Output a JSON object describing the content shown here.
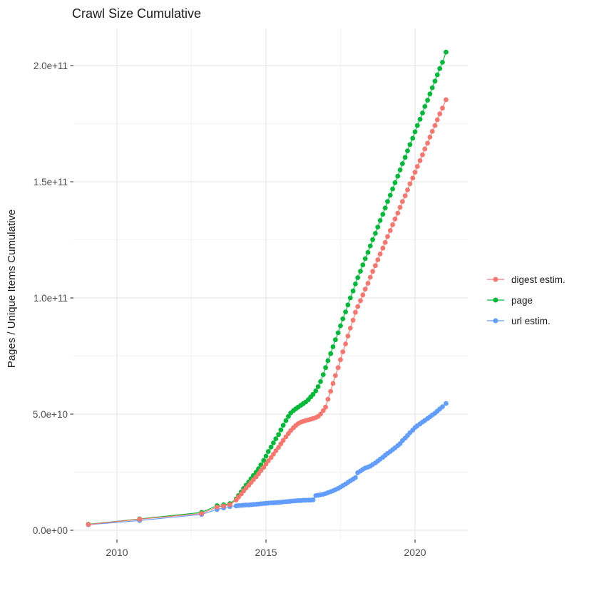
{
  "title": "Crawl Size Cumulative",
  "axes": {
    "y_label": "Pages / Unique Items Cumulative",
    "x_tick_labels": [
      "2010",
      "2015",
      "2020"
    ],
    "y_tick_labels": [
      "0.0e+00",
      "5.0e+10",
      "1.0e+11",
      "1.5e+11",
      "2.0e+11"
    ]
  },
  "legend": {
    "items": [
      {
        "label": "digest estim.",
        "color": "#F8766D"
      },
      {
        "label": "page",
        "color": "#00BA38"
      },
      {
        "label": "url estim.",
        "color": "#619CFF"
      }
    ]
  },
  "colors": {
    "digest": "#F8766D",
    "page": "#00BA38",
    "url": "#619CFF",
    "grid_major": "#E3E3E3",
    "grid_minor": "#F1F1F1",
    "tick": "#333333",
    "axis_text": "#4D4D4D",
    "text": "#1A1A1A",
    "background": "#FFFFFF"
  },
  "chart_data": {
    "type": "line",
    "title": "Crawl Size Cumulative",
    "xlabel": "",
    "ylabel": "Pages / Unique Items Cumulative",
    "value_unit": "items, values in billions (1e9)",
    "x_range": [
      2008.5,
      2021.8
    ],
    "y_range_e9": [
      -4,
      216
    ],
    "x_major_ticks": [
      2010,
      2015,
      2020
    ],
    "x_minor_gridlines": [
      2012.5,
      2017.5
    ],
    "y_major_ticks_e9": [
      0,
      50,
      100,
      150,
      200
    ],
    "y_minor_gridlines_e9": [
      25,
      75,
      125,
      175
    ],
    "x_tick_labels": [
      "2010",
      "2015",
      "2020"
    ],
    "y_tick_labels": [
      "0.0e+00",
      "5.0e+10",
      "1.0e+11",
      "1.5e+11",
      "2.0e+11"
    ],
    "grid": true,
    "legend_position": "right",
    "series": [
      {
        "name": "digest estim.",
        "color": "#F8766D",
        "points": [
          [
            2009.04,
            2.5
          ],
          [
            2010.76,
            4.8
          ],
          [
            2012.84,
            7.2
          ],
          [
            2013.36,
            10.0
          ],
          [
            2013.58,
            10.5
          ],
          [
            2013.79,
            11.0
          ],
          [
            2014.0,
            13.0
          ],
          [
            2014.08,
            14.3
          ],
          [
            2014.17,
            15.6
          ],
          [
            2014.25,
            16.9
          ],
          [
            2014.33,
            18.2
          ],
          [
            2014.42,
            19.4
          ],
          [
            2014.5,
            20.6
          ],
          [
            2014.58,
            21.8
          ],
          [
            2014.67,
            23.0
          ],
          [
            2014.75,
            24.3
          ],
          [
            2014.83,
            25.7
          ],
          [
            2014.92,
            27.1
          ],
          [
            2015.0,
            28.5
          ],
          [
            2015.08,
            29.9
          ],
          [
            2015.17,
            31.3
          ],
          [
            2015.25,
            32.7
          ],
          [
            2015.33,
            34.2
          ],
          [
            2015.42,
            35.7
          ],
          [
            2015.5,
            37.2
          ],
          [
            2015.58,
            38.7
          ],
          [
            2015.67,
            40.2
          ],
          [
            2015.75,
            41.6
          ],
          [
            2015.83,
            42.9
          ],
          [
            2015.92,
            44.1
          ],
          [
            2016.0,
            45.1
          ],
          [
            2016.08,
            45.9
          ],
          [
            2016.17,
            46.5
          ],
          [
            2016.25,
            46.9
          ],
          [
            2016.33,
            47.2
          ],
          [
            2016.42,
            47.5
          ],
          [
            2016.5,
            47.8
          ],
          [
            2016.58,
            48.1
          ],
          [
            2016.67,
            48.5
          ],
          [
            2016.75,
            49.0
          ],
          [
            2016.83,
            50.0
          ],
          [
            2016.92,
            51.5
          ],
          [
            2017.0,
            53.0
          ],
          [
            2017.08,
            56.4
          ],
          [
            2017.17,
            59.8
          ],
          [
            2017.25,
            63.2
          ],
          [
            2017.33,
            66.6
          ],
          [
            2017.42,
            70.0
          ],
          [
            2017.5,
            73.4
          ],
          [
            2017.58,
            76.8
          ],
          [
            2017.67,
            80.2
          ],
          [
            2017.75,
            83.6
          ],
          [
            2017.83,
            87.0
          ],
          [
            2017.92,
            90.4
          ],
          [
            2018.0,
            93.8
          ],
          [
            2018.08,
            96.3
          ],
          [
            2018.17,
            98.8
          ],
          [
            2018.25,
            101.3
          ],
          [
            2018.33,
            103.8
          ],
          [
            2018.42,
            106.3
          ],
          [
            2018.5,
            108.9
          ],
          [
            2018.58,
            111.4
          ],
          [
            2018.67,
            113.9
          ],
          [
            2018.75,
            116.4
          ],
          [
            2018.83,
            118.9
          ],
          [
            2018.92,
            121.4
          ],
          [
            2019.0,
            123.9
          ],
          [
            2019.08,
            126.4
          ],
          [
            2019.17,
            129.0
          ],
          [
            2019.25,
            131.5
          ],
          [
            2019.33,
            134.0
          ],
          [
            2019.42,
            136.5
          ],
          [
            2019.5,
            139.0
          ],
          [
            2019.58,
            141.5
          ],
          [
            2019.67,
            144.0
          ],
          [
            2019.75,
            146.5
          ],
          [
            2019.83,
            149.1
          ],
          [
            2019.92,
            151.6
          ],
          [
            2020.0,
            154.1
          ],
          [
            2020.08,
            156.6
          ],
          [
            2020.17,
            159.1
          ],
          [
            2020.25,
            161.6
          ],
          [
            2020.33,
            164.1
          ],
          [
            2020.42,
            166.6
          ],
          [
            2020.5,
            169.2
          ],
          [
            2020.58,
            171.7
          ],
          [
            2020.67,
            174.2
          ],
          [
            2020.75,
            176.7
          ],
          [
            2020.83,
            179.2
          ],
          [
            2020.92,
            181.7
          ],
          [
            2021.04,
            185.3
          ]
        ]
      },
      {
        "name": "page",
        "color": "#00BA38",
        "points": [
          [
            2009.04,
            2.6
          ],
          [
            2010.76,
            4.9
          ],
          [
            2012.84,
            7.7
          ],
          [
            2013.36,
            10.6
          ],
          [
            2013.58,
            11.0
          ],
          [
            2013.79,
            11.5
          ],
          [
            2014.0,
            13.5
          ],
          [
            2014.08,
            15.0
          ],
          [
            2014.17,
            16.5
          ],
          [
            2014.25,
            18.0
          ],
          [
            2014.33,
            19.4
          ],
          [
            2014.42,
            20.8
          ],
          [
            2014.5,
            22.2
          ],
          [
            2014.58,
            23.6
          ],
          [
            2014.67,
            25.0
          ],
          [
            2014.75,
            26.5
          ],
          [
            2014.83,
            28.2
          ],
          [
            2014.92,
            30.0
          ],
          [
            2015.0,
            31.9
          ],
          [
            2015.08,
            33.9
          ],
          [
            2015.17,
            35.8
          ],
          [
            2015.25,
            37.6
          ],
          [
            2015.33,
            39.4
          ],
          [
            2015.42,
            41.2
          ],
          [
            2015.5,
            43.2
          ],
          [
            2015.58,
            45.2
          ],
          [
            2015.67,
            47.2
          ],
          [
            2015.75,
            49.0
          ],
          [
            2015.83,
            50.5
          ],
          [
            2015.92,
            51.5
          ],
          [
            2016.0,
            52.3
          ],
          [
            2016.08,
            53.0
          ],
          [
            2016.17,
            53.8
          ],
          [
            2016.25,
            54.5
          ],
          [
            2016.33,
            55.2
          ],
          [
            2016.42,
            56.2
          ],
          [
            2016.5,
            57.4
          ],
          [
            2016.58,
            58.5
          ],
          [
            2016.67,
            60.0
          ],
          [
            2016.75,
            61.8
          ],
          [
            2016.83,
            64.0
          ],
          [
            2016.92,
            67.0
          ],
          [
            2017.0,
            70.0
          ],
          [
            2017.08,
            73.0
          ],
          [
            2017.17,
            76.0
          ],
          [
            2017.25,
            79.0
          ],
          [
            2017.33,
            82.0
          ],
          [
            2017.42,
            85.0
          ],
          [
            2017.5,
            88.0
          ],
          [
            2017.58,
            91.0
          ],
          [
            2017.67,
            94.0
          ],
          [
            2017.75,
            97.0
          ],
          [
            2017.83,
            100.0
          ],
          [
            2017.92,
            103.0
          ],
          [
            2018.0,
            106.0
          ],
          [
            2018.08,
            108.7
          ],
          [
            2018.17,
            111.5
          ],
          [
            2018.25,
            114.2
          ],
          [
            2018.33,
            116.9
          ],
          [
            2018.42,
            119.6
          ],
          [
            2018.5,
            122.4
          ],
          [
            2018.58,
            125.1
          ],
          [
            2018.67,
            127.8
          ],
          [
            2018.75,
            130.5
          ],
          [
            2018.83,
            133.3
          ],
          [
            2018.92,
            136.0
          ],
          [
            2019.0,
            138.7
          ],
          [
            2019.08,
            141.5
          ],
          [
            2019.17,
            144.2
          ],
          [
            2019.25,
            146.9
          ],
          [
            2019.33,
            149.6
          ],
          [
            2019.42,
            152.4
          ],
          [
            2019.5,
            155.1
          ],
          [
            2019.58,
            157.8
          ],
          [
            2019.67,
            160.5
          ],
          [
            2019.75,
            163.3
          ],
          [
            2019.83,
            166.0
          ],
          [
            2019.92,
            168.7
          ],
          [
            2020.0,
            171.5
          ],
          [
            2020.08,
            174.2
          ],
          [
            2020.17,
            176.9
          ],
          [
            2020.25,
            179.6
          ],
          [
            2020.33,
            182.4
          ],
          [
            2020.42,
            185.1
          ],
          [
            2020.5,
            187.8
          ],
          [
            2020.58,
            190.5
          ],
          [
            2020.67,
            193.3
          ],
          [
            2020.75,
            196.0
          ],
          [
            2020.83,
            198.7
          ],
          [
            2020.92,
            201.4
          ],
          [
            2021.04,
            205.8
          ]
        ]
      },
      {
        "name": "url estim.",
        "color": "#619CFF",
        "points": [
          [
            2009.04,
            2.4
          ],
          [
            2010.76,
            4.2
          ],
          [
            2012.84,
            6.8
          ],
          [
            2013.36,
            9.0
          ],
          [
            2013.58,
            9.6
          ],
          [
            2013.79,
            10.2
          ],
          [
            2014.0,
            10.5
          ],
          [
            2014.08,
            10.6
          ],
          [
            2014.17,
            10.7
          ],
          [
            2014.25,
            10.8
          ],
          [
            2014.33,
            10.9
          ],
          [
            2014.42,
            10.9
          ],
          [
            2014.5,
            11.0
          ],
          [
            2014.58,
            11.1
          ],
          [
            2014.67,
            11.2
          ],
          [
            2014.75,
            11.3
          ],
          [
            2014.83,
            11.4
          ],
          [
            2014.92,
            11.5
          ],
          [
            2015.0,
            11.6
          ],
          [
            2015.08,
            11.7
          ],
          [
            2015.17,
            11.8
          ],
          [
            2015.25,
            11.8
          ],
          [
            2015.33,
            11.9
          ],
          [
            2015.42,
            12.0
          ],
          [
            2015.5,
            12.1
          ],
          [
            2015.58,
            12.2
          ],
          [
            2015.67,
            12.3
          ],
          [
            2015.75,
            12.4
          ],
          [
            2015.83,
            12.5
          ],
          [
            2015.92,
            12.6
          ],
          [
            2016.0,
            12.7
          ],
          [
            2016.08,
            12.8
          ],
          [
            2016.17,
            12.8
          ],
          [
            2016.25,
            12.9
          ],
          [
            2016.33,
            12.9
          ],
          [
            2016.42,
            13.0
          ],
          [
            2016.5,
            13.0
          ],
          [
            2016.58,
            13.1
          ],
          [
            2016.67,
            14.9
          ],
          [
            2016.75,
            15.1
          ],
          [
            2016.83,
            15.3
          ],
          [
            2016.92,
            15.5
          ],
          [
            2017.0,
            15.8
          ],
          [
            2017.08,
            16.2
          ],
          [
            2017.17,
            16.6
          ],
          [
            2017.25,
            17.0
          ],
          [
            2017.33,
            17.5
          ],
          [
            2017.42,
            18.0
          ],
          [
            2017.5,
            18.6
          ],
          [
            2017.58,
            19.2
          ],
          [
            2017.67,
            19.9
          ],
          [
            2017.75,
            20.6
          ],
          [
            2017.83,
            21.3
          ],
          [
            2017.92,
            22.0
          ],
          [
            2018.0,
            22.7
          ],
          [
            2018.08,
            24.8
          ],
          [
            2018.17,
            25.5
          ],
          [
            2018.25,
            26.2
          ],
          [
            2018.33,
            26.8
          ],
          [
            2018.42,
            27.2
          ],
          [
            2018.5,
            27.6
          ],
          [
            2018.58,
            28.3
          ],
          [
            2018.67,
            29.0
          ],
          [
            2018.75,
            29.8
          ],
          [
            2018.83,
            30.6
          ],
          [
            2018.92,
            31.4
          ],
          [
            2019.0,
            32.3
          ],
          [
            2019.08,
            33.1
          ],
          [
            2019.17,
            33.9
          ],
          [
            2019.25,
            34.7
          ],
          [
            2019.33,
            35.5
          ],
          [
            2019.42,
            36.4
          ],
          [
            2019.5,
            37.3
          ],
          [
            2019.58,
            38.6
          ],
          [
            2019.67,
            39.7
          ],
          [
            2019.75,
            40.8
          ],
          [
            2019.83,
            42.0
          ],
          [
            2019.92,
            43.1
          ],
          [
            2020.0,
            44.2
          ],
          [
            2020.08,
            45.0
          ],
          [
            2020.17,
            45.8
          ],
          [
            2020.25,
            46.6
          ],
          [
            2020.33,
            47.3
          ],
          [
            2020.42,
            48.1
          ],
          [
            2020.5,
            48.8
          ],
          [
            2020.58,
            49.6
          ],
          [
            2020.67,
            50.4
          ],
          [
            2020.75,
            51.3
          ],
          [
            2020.83,
            52.2
          ],
          [
            2020.92,
            53.2
          ],
          [
            2021.04,
            54.6
          ]
        ]
      }
    ]
  }
}
